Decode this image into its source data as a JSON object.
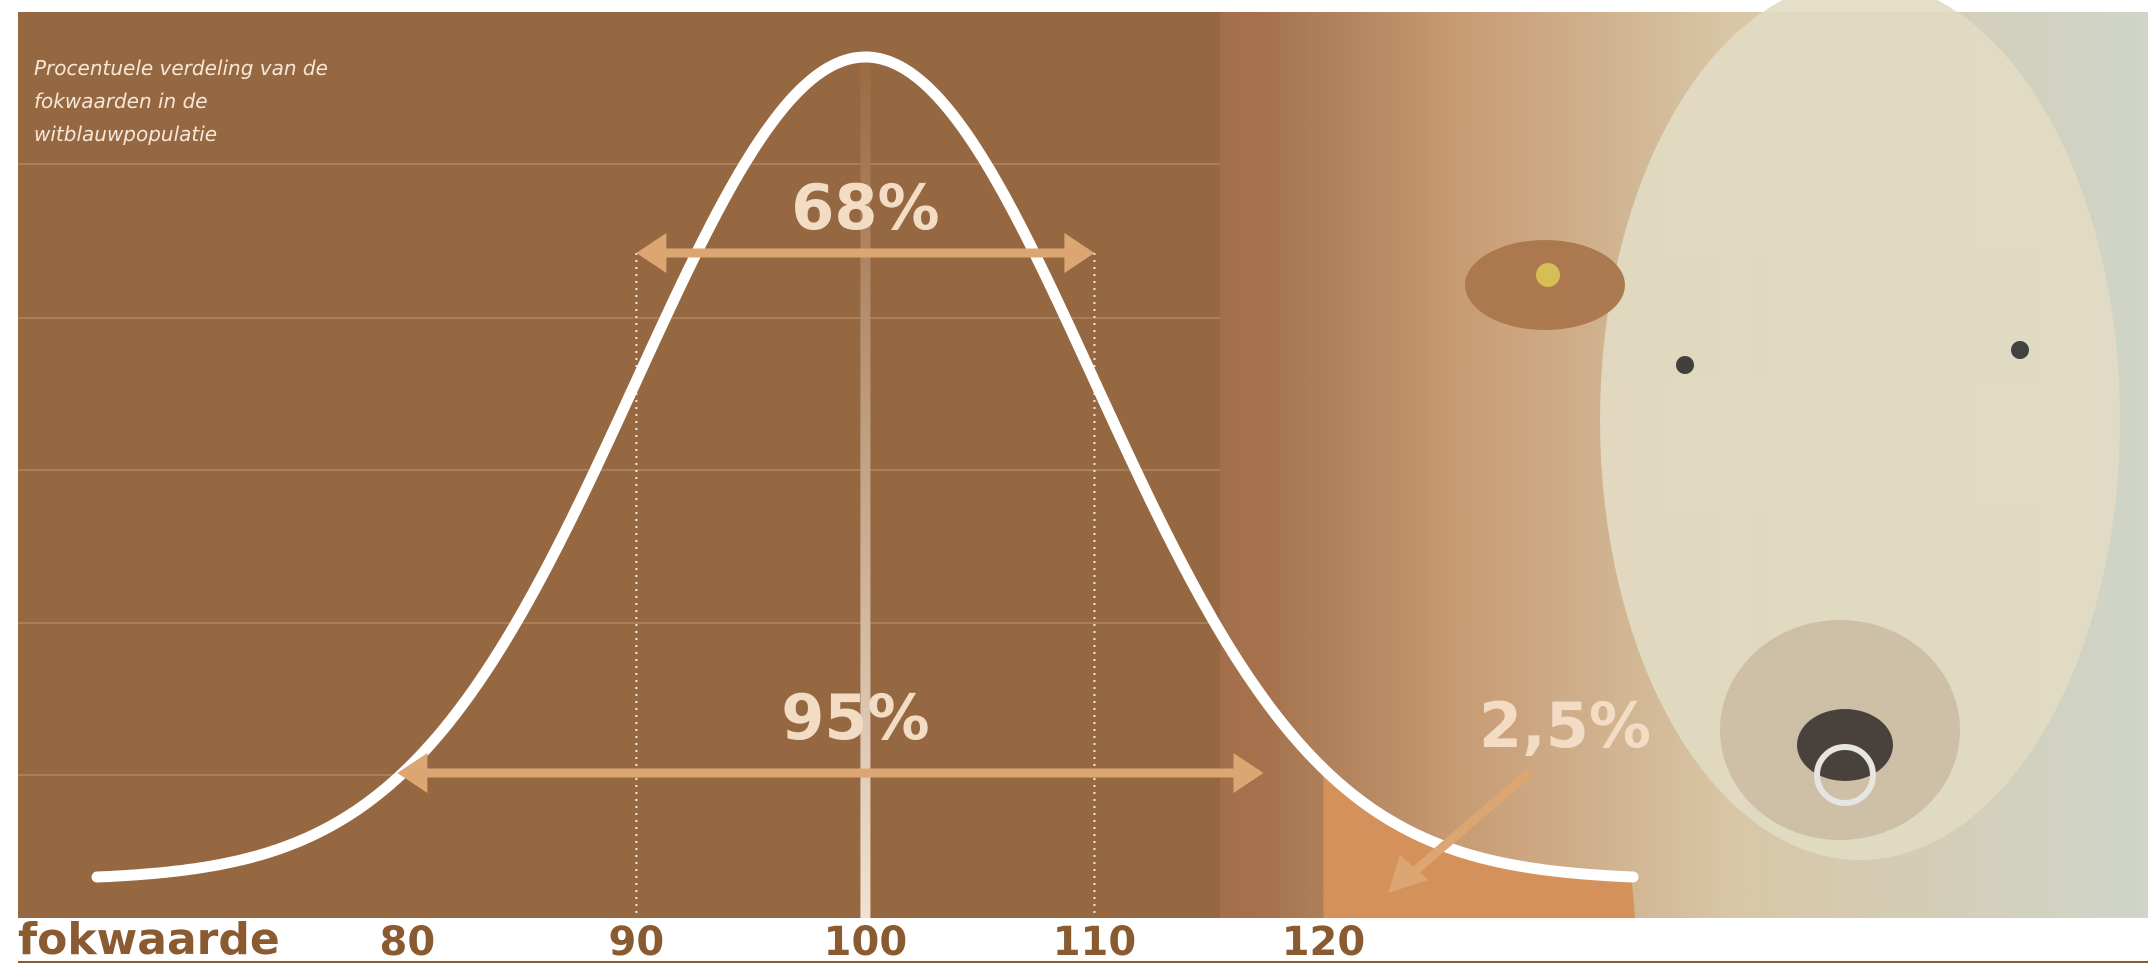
{
  "chart_data": {
    "type": "normal",
    "title": "Procentuele verdeling van de fokwaarden in de witblauwpopulatie",
    "xlabel": "fokwaarde",
    "xlim": [
      63,
      156
    ],
    "xticks": [
      80,
      90,
      100,
      110,
      120
    ],
    "grid": true,
    "color": "#ffffff",
    "annotations": [
      "68%",
      "95%",
      "2,5%"
    ]
  }
}
